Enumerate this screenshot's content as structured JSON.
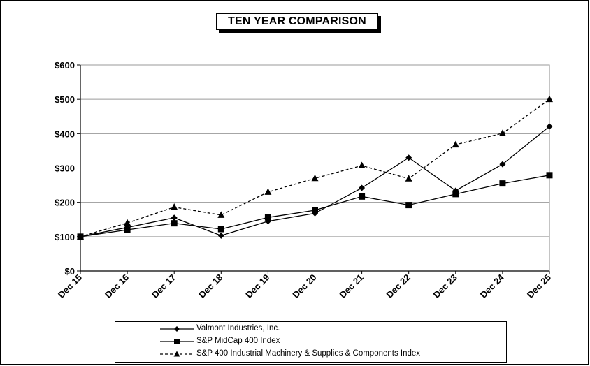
{
  "chart_data": {
    "type": "line",
    "title": "TEN YEAR COMPARISON",
    "categories": [
      "Dec 15",
      "Dec 16",
      "Dec 17",
      "Dec 18",
      "Dec 19",
      "Dec 20",
      "Dec 21",
      "Dec 22",
      "Dec 23",
      "Dec 24",
      "Dec 25"
    ],
    "ylim": [
      0,
      600
    ],
    "yticks": [
      "$0",
      "$100",
      "$200",
      "$300",
      "$400",
      "$500",
      "$600"
    ],
    "ytick_values": [
      0,
      100,
      200,
      300,
      400,
      500,
      600
    ],
    "grid": "horizontal",
    "legend_position": "bottom",
    "series": [
      {
        "name": "Valmont Industries, Inc.",
        "marker": "diamond",
        "dash": "solid",
        "color": "#000000",
        "values": [
          100,
          127,
          155,
          103,
          145,
          168,
          242,
          330,
          234,
          311,
          421
        ]
      },
      {
        "name": "S&P MidCap 400 Index",
        "marker": "square",
        "dash": "solid",
        "color": "#000000",
        "values": [
          100,
          120,
          139,
          122,
          156,
          177,
          217,
          192,
          224,
          255,
          279
        ]
      },
      {
        "name": "S&P 400 Industrial Machinery & Supplies & Components Index",
        "marker": "triangle",
        "dash": "dashed",
        "color": "#000000",
        "values": [
          100,
          140,
          186,
          163,
          230,
          270,
          307,
          269,
          368,
          401,
          500
        ]
      }
    ]
  }
}
